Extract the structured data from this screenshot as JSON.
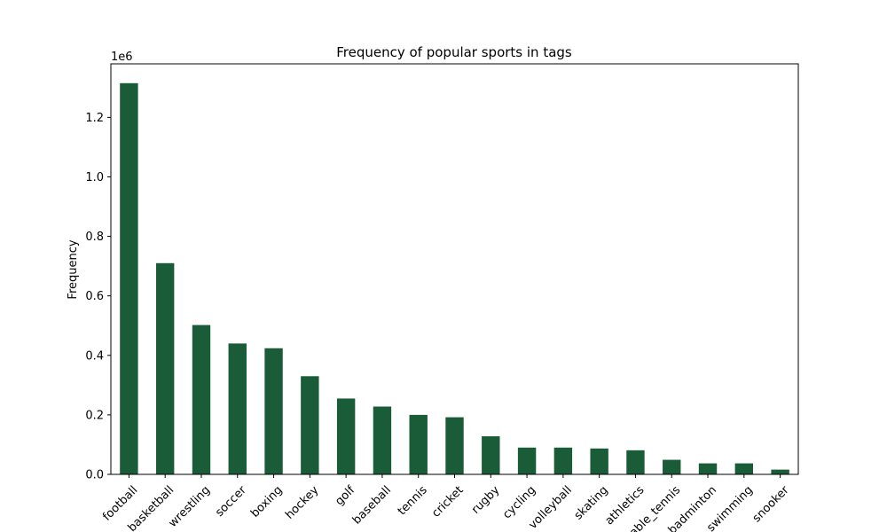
{
  "chart_data": {
    "type": "bar",
    "title": "Frequency of popular sports in tags",
    "xlabel": "",
    "ylabel": "Frequency",
    "offset_label": "1e6",
    "ylim": [
      0,
      1.38
    ],
    "yticks": [
      "0.0",
      "0.2",
      "0.4",
      "0.6",
      "0.8",
      "1.0",
      "1.2"
    ],
    "yticks_values": [
      0,
      0.2,
      0.4,
      0.6,
      0.8,
      1.0,
      1.2
    ],
    "categories": [
      "football",
      "basketball",
      "wrestling",
      "soccer",
      "boxing",
      "hockey",
      "golf",
      "baseball",
      "tennis",
      "cricket",
      "rugby",
      "cycling",
      "volleyball",
      "skating",
      "athletics",
      "table_tennis",
      "badminton",
      "swimming",
      "snooker"
    ],
    "values": [
      1.315,
      0.71,
      0.502,
      0.44,
      0.424,
      0.33,
      0.255,
      0.228,
      0.2,
      0.192,
      0.128,
      0.09,
      0.09,
      0.087,
      0.081,
      0.049,
      0.037,
      0.037,
      0.016
    ],
    "color": "#1a5c37",
    "grid": false,
    "legend": "none"
  }
}
